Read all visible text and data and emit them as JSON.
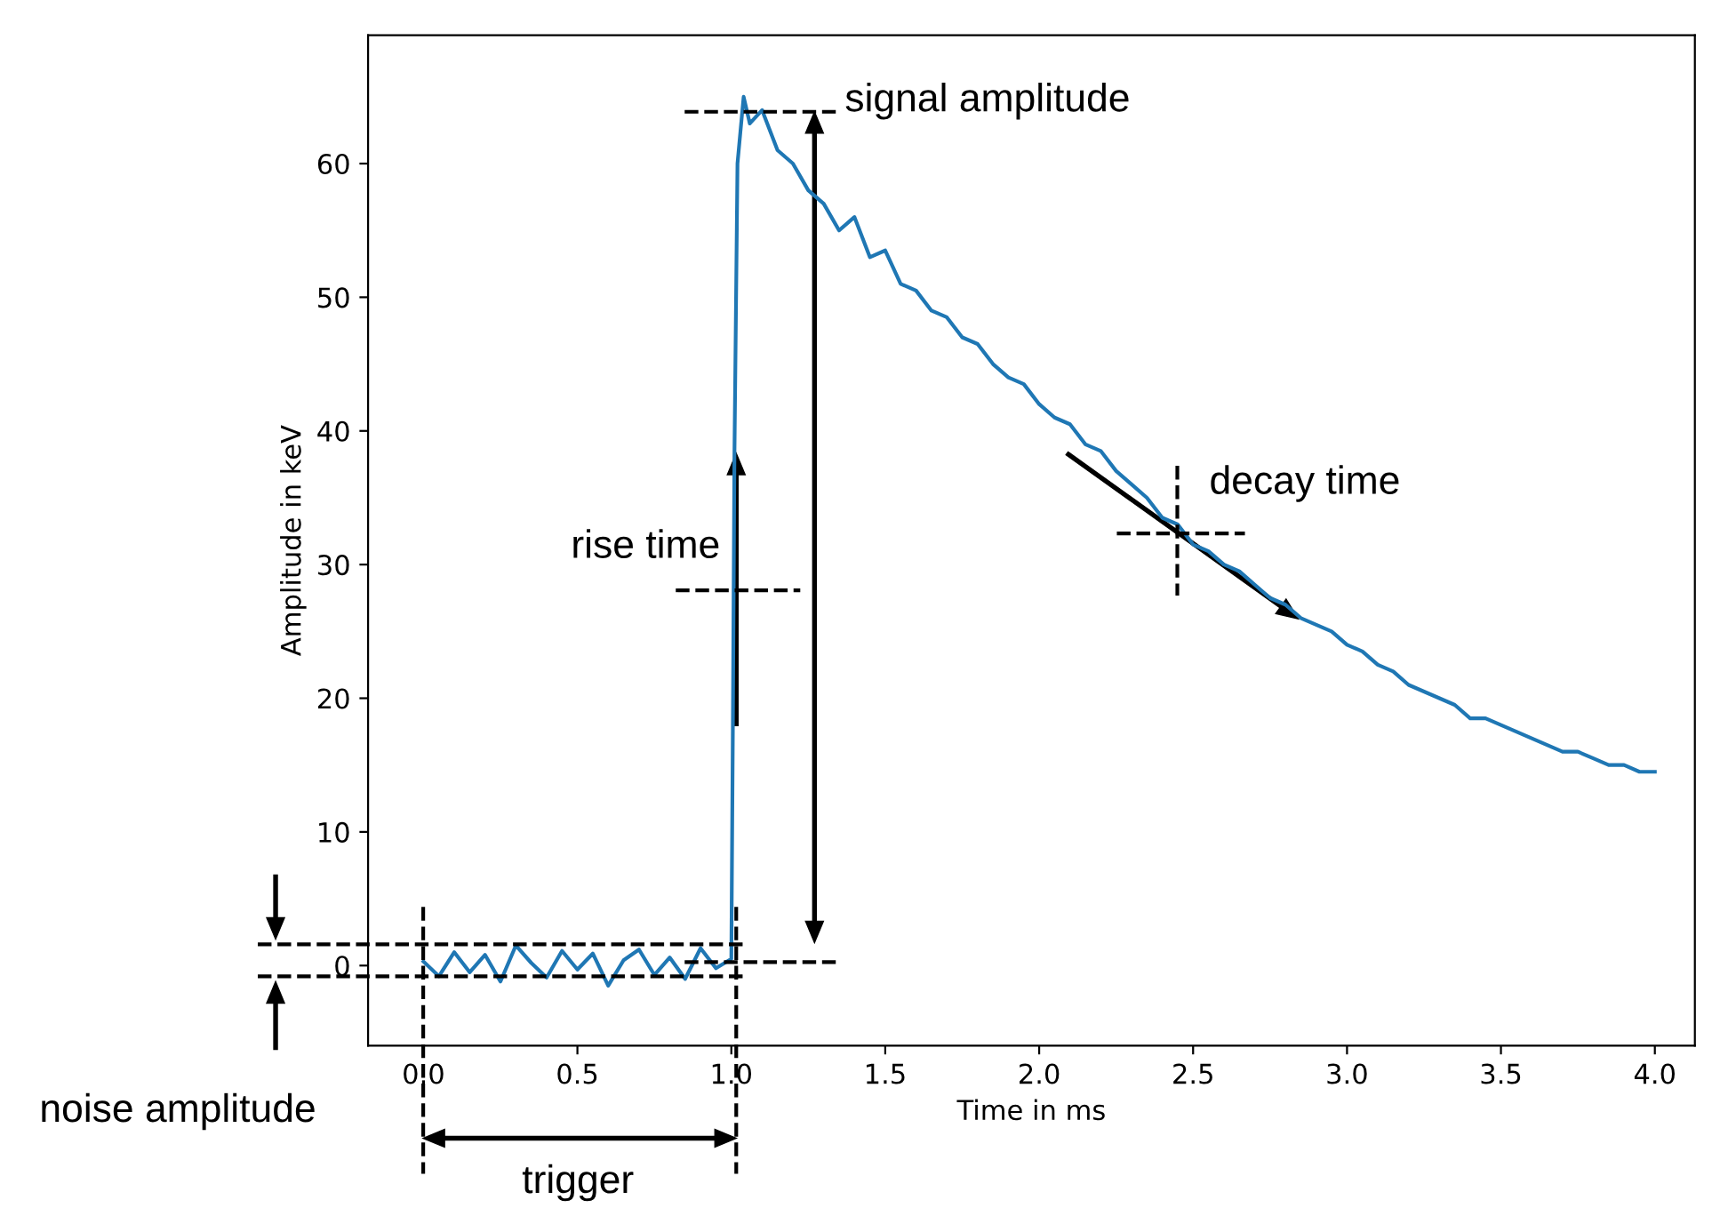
{
  "chart_data": {
    "type": "line",
    "xlabel": "Time in ms",
    "ylabel": "Amplitude in keV",
    "x": [
      0.0,
      0.05,
      0.1,
      0.15,
      0.2,
      0.25,
      0.3,
      0.35,
      0.4,
      0.45,
      0.5,
      0.55,
      0.6,
      0.65,
      0.7,
      0.75,
      0.8,
      0.85,
      0.9,
      0.95,
      1.0,
      1.005,
      1.01,
      1.02,
      1.04,
      1.06,
      1.1,
      1.15,
      1.2,
      1.25,
      1.3,
      1.35,
      1.4,
      1.45,
      1.5,
      1.55,
      1.6,
      1.65,
      1.7,
      1.75,
      1.8,
      1.85,
      1.9,
      1.95,
      2.0,
      2.05,
      2.1,
      2.15,
      2.2,
      2.25,
      2.3,
      2.35,
      2.4,
      2.45,
      2.5,
      2.55,
      2.6,
      2.65,
      2.7,
      2.75,
      2.8,
      2.85,
      2.9,
      2.95,
      3.0,
      3.05,
      3.1,
      3.15,
      3.2,
      3.25,
      3.3,
      3.35,
      3.4,
      3.45,
      3.5,
      3.55,
      3.6,
      3.65,
      3.7,
      3.75,
      3.8,
      3.85,
      3.9,
      3.95,
      4.0
    ],
    "series": [
      {
        "color": "#1f77b4",
        "values": [
          0.3,
          -0.8,
          1.0,
          -0.5,
          0.8,
          -1.2,
          1.5,
          0.2,
          -0.9,
          1.1,
          -0.3,
          0.9,
          -1.5,
          0.4,
          1.2,
          -0.7,
          0.6,
          -1.0,
          1.3,
          -0.2,
          0.5,
          18,
          38,
          60,
          65,
          63,
          64,
          61,
          60,
          58,
          57,
          55,
          56,
          53,
          53.5,
          51,
          50.5,
          49,
          48.5,
          47,
          46.5,
          45,
          44,
          43.5,
          42,
          41,
          40.5,
          39,
          38.5,
          37,
          36,
          35,
          33.5,
          33,
          31.5,
          31,
          30,
          29.5,
          28.5,
          27.5,
          27,
          26,
          25.5,
          25,
          24,
          23.5,
          22.5,
          22,
          21,
          20.5,
          20,
          19.5,
          18.5,
          18.5,
          18,
          17.5,
          17,
          16.5,
          16,
          16,
          15.5,
          15,
          15,
          14.5,
          14.5
        ]
      }
    ],
    "xlim": [
      -0.18,
      4.13
    ],
    "ylim": [
      -6,
      69.6
    ],
    "xticks": [
      {
        "value": 0,
        "label": "0.0"
      },
      {
        "value": 0.5,
        "label": "0.5"
      },
      {
        "value": 1,
        "label": "1.0"
      },
      {
        "value": 1.5,
        "label": "1.5"
      },
      {
        "value": 2,
        "label": "2.0"
      },
      {
        "value": 2.5,
        "label": "2.5"
      },
      {
        "value": 3,
        "label": "3.0"
      },
      {
        "value": 3.5,
        "label": "3.5"
      },
      {
        "value": 4,
        "label": "4.0"
      }
    ],
    "yticks": [
      0,
      10,
      20,
      30,
      40,
      50,
      60
    ],
    "grid": false,
    "legend": false,
    "marker": "none",
    "line_style": "solid",
    "annotations": [
      "signal amplitude",
      "rise time",
      "decay time",
      "noise amplitude",
      "trigger"
    ]
  }
}
